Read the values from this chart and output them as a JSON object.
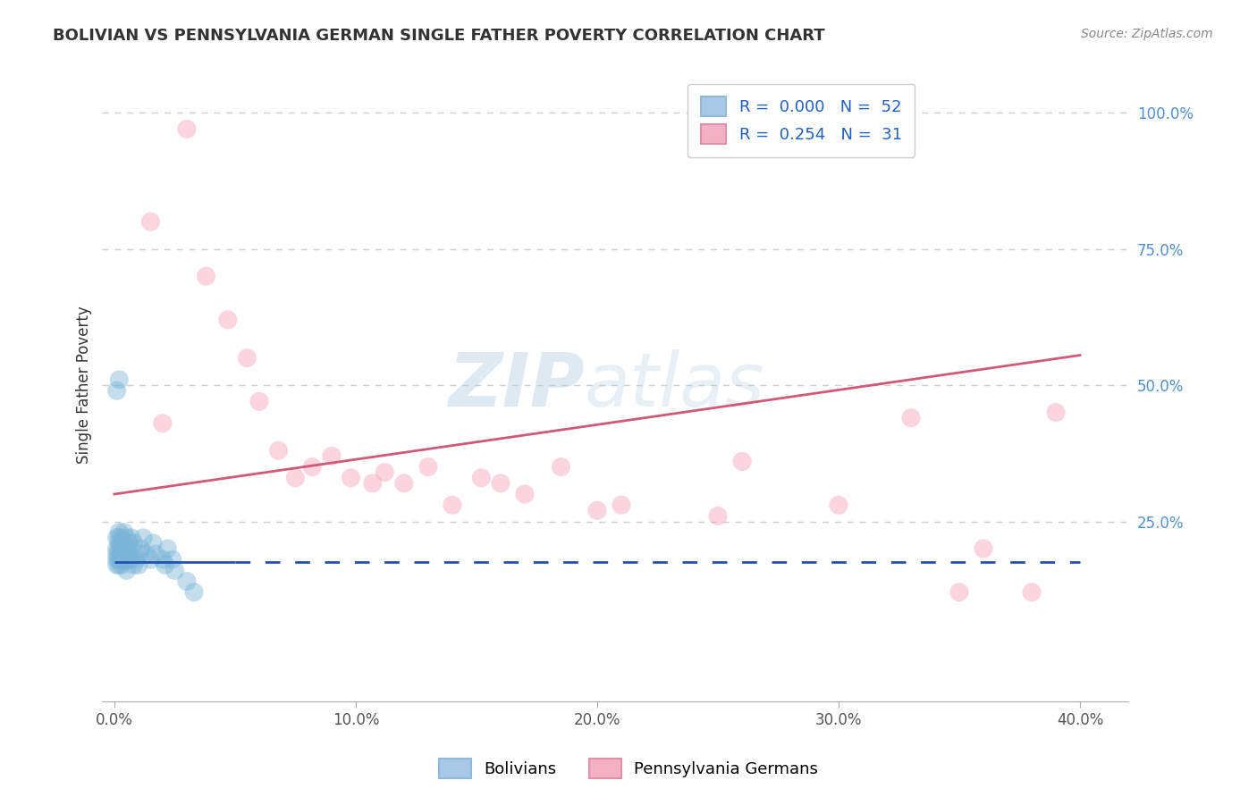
{
  "title": "BOLIVIAN VS PENNSYLVANIA GERMAN SINGLE FATHER POVERTY CORRELATION CHART",
  "source": "Source: ZipAtlas.com",
  "ylabel": "Single Father Poverty",
  "blue_color": "#7ab4d8",
  "pink_color": "#f4a0b8",
  "blue_line_color": "#2050b0",
  "pink_line_color": "#d05878",
  "legend_color1": "#a8c8e8",
  "legend_color2": "#f4b0c4",
  "text_color_dark": "#333333",
  "text_color_blue": "#2060c0",
  "text_color_axis_right": "#5090d0",
  "grid_color": "#cccccc",
  "xtick_vals": [
    0.0,
    0.1,
    0.2,
    0.3,
    0.4
  ],
  "xtick_labels": [
    "0.0%",
    "10.0%",
    "20.0%",
    "30.0%",
    "40.0%"
  ],
  "ytick_right_vals": [
    0.25,
    0.5,
    0.75,
    1.0
  ],
  "ytick_right_labels": [
    "25.0%",
    "50.0%",
    "75.0%",
    "100.0%"
  ],
  "xlim": [
    -0.005,
    0.42
  ],
  "ylim": [
    -0.08,
    1.08
  ],
  "pink_line_x0": 0.0,
  "pink_line_y0": 0.3,
  "pink_line_x1": 0.4,
  "pink_line_y1": 0.555,
  "blue_line_y": 0.175,
  "blue_line_solid_end": 0.05,
  "blue_line_dash_end": 0.4,
  "bolivians_x": [
    0.001,
    0.001,
    0.001,
    0.001,
    0.001,
    0.002,
    0.002,
    0.002,
    0.002,
    0.002,
    0.002,
    0.002,
    0.003,
    0.003,
    0.003,
    0.003,
    0.003,
    0.003,
    0.004,
    0.004,
    0.004,
    0.004,
    0.005,
    0.005,
    0.005,
    0.005,
    0.006,
    0.006,
    0.006,
    0.006,
    0.007,
    0.007,
    0.008,
    0.008,
    0.009,
    0.01,
    0.01,
    0.011,
    0.012,
    0.013,
    0.015,
    0.016,
    0.017,
    0.02,
    0.021,
    0.022,
    0.024,
    0.025,
    0.03,
    0.033,
    0.001,
    0.002
  ],
  "bolivians_y": [
    0.17,
    0.19,
    0.2,
    0.22,
    0.18,
    0.17,
    0.18,
    0.19,
    0.2,
    0.21,
    0.22,
    0.23,
    0.17,
    0.18,
    0.19,
    0.2,
    0.21,
    0.22,
    0.18,
    0.19,
    0.2,
    0.23,
    0.16,
    0.18,
    0.2,
    0.22,
    0.18,
    0.19,
    0.2,
    0.21,
    0.18,
    0.22,
    0.17,
    0.21,
    0.18,
    0.17,
    0.19,
    0.2,
    0.22,
    0.19,
    0.18,
    0.21,
    0.19,
    0.18,
    0.17,
    0.2,
    0.18,
    0.16,
    0.14,
    0.12,
    0.49,
    0.51
  ],
  "penn_german_x": [
    0.03,
    0.038,
    0.047,
    0.055,
    0.06,
    0.068,
    0.075,
    0.082,
    0.09,
    0.098,
    0.107,
    0.112,
    0.12,
    0.13,
    0.14,
    0.152,
    0.16,
    0.17,
    0.185,
    0.2,
    0.21,
    0.25,
    0.26,
    0.3,
    0.33,
    0.35,
    0.36,
    0.38,
    0.39,
    0.015,
    0.02
  ],
  "penn_german_y": [
    0.97,
    0.7,
    0.62,
    0.55,
    0.47,
    0.38,
    0.33,
    0.35,
    0.37,
    0.33,
    0.32,
    0.34,
    0.32,
    0.35,
    0.28,
    0.33,
    0.32,
    0.3,
    0.35,
    0.27,
    0.28,
    0.26,
    0.36,
    0.28,
    0.44,
    0.12,
    0.2,
    0.12,
    0.45,
    0.8,
    0.43
  ],
  "bottom_legend_labels": [
    "Bolivians",
    "Pennsylvania Germans"
  ]
}
